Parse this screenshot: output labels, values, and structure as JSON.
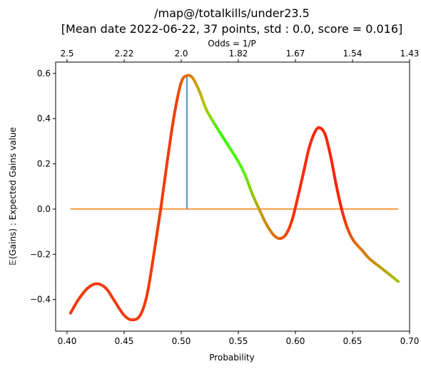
{
  "chart_data": {
    "type": "line",
    "title_line1": "/map@/totalkills/under23.5",
    "title_line2": "[Mean date 2022-06-22, 37 points, std : 0.0, score = 0.016]",
    "xlabel": "Probability",
    "ylabel": "𝔼(Gains) : Expected Gains value",
    "top_xlabel": "Odds  = 1/P",
    "xlim": [
      0.39,
      0.7
    ],
    "ylim": [
      -0.54,
      0.65
    ],
    "x_ticks": [
      0.4,
      0.45,
      0.5,
      0.55,
      0.6,
      0.65,
      0.7
    ],
    "x_tick_labels": [
      "0.40",
      "0.45",
      "0.50",
      "0.55",
      "0.60",
      "0.65",
      "0.70"
    ],
    "y_ticks": [
      -0.4,
      -0.2,
      0.0,
      0.2,
      0.4,
      0.6
    ],
    "y_tick_labels": [
      "−0.4",
      "−0.2",
      "0.0",
      "0.2",
      "0.4",
      "0.6"
    ],
    "top_ticks": [
      {
        "prob": 0.4,
        "label": "2.5"
      },
      {
        "prob": 0.45,
        "label": "2.22"
      },
      {
        "prob": 0.5,
        "label": "2.0"
      },
      {
        "prob": 0.55,
        "label": "1.82"
      },
      {
        "prob": 0.6,
        "label": "1.67"
      },
      {
        "prob": 0.65,
        "label": "1.54"
      },
      {
        "prob": 0.7,
        "label": "1.43"
      }
    ],
    "series": [
      {
        "points": [
          [
            0.403,
            -0.46
          ],
          [
            0.41,
            -0.4
          ],
          [
            0.418,
            -0.35
          ],
          [
            0.426,
            -0.33
          ],
          [
            0.434,
            -0.35
          ],
          [
            0.442,
            -0.41
          ],
          [
            0.45,
            -0.47
          ],
          [
            0.457,
            -0.49
          ],
          [
            0.464,
            -0.47
          ],
          [
            0.47,
            -0.38
          ],
          [
            0.476,
            -0.2
          ],
          [
            0.482,
            0.0
          ],
          [
            0.488,
            0.22
          ],
          [
            0.494,
            0.42
          ],
          [
            0.5,
            0.56
          ],
          [
            0.505,
            0.59
          ],
          [
            0.51,
            0.58
          ],
          [
            0.516,
            0.52
          ],
          [
            0.522,
            0.44
          ],
          [
            0.53,
            0.37
          ],
          [
            0.54,
            0.29
          ],
          [
            0.55,
            0.21
          ],
          [
            0.556,
            0.15
          ],
          [
            0.562,
            0.07
          ],
          [
            0.57,
            -0.02
          ],
          [
            0.576,
            -0.08
          ],
          [
            0.582,
            -0.12
          ],
          [
            0.587,
            -0.13
          ],
          [
            0.592,
            -0.11
          ],
          [
            0.597,
            -0.05
          ],
          [
            0.602,
            0.05
          ],
          [
            0.607,
            0.16
          ],
          [
            0.612,
            0.27
          ],
          [
            0.617,
            0.34
          ],
          [
            0.621,
            0.36
          ],
          [
            0.626,
            0.33
          ],
          [
            0.631,
            0.23
          ],
          [
            0.636,
            0.1
          ],
          [
            0.641,
            -0.01
          ],
          [
            0.646,
            -0.09
          ],
          [
            0.651,
            -0.14
          ],
          [
            0.658,
            -0.18
          ],
          [
            0.665,
            -0.22
          ],
          [
            0.675,
            -0.26
          ],
          [
            0.69,
            -0.32
          ]
        ],
        "gradient_colors": [
          {
            "x": 0.403,
            "color": "#f03a0c"
          },
          {
            "x": 0.495,
            "color": "#f33d0a"
          },
          {
            "x": 0.507,
            "color": "#e07a08"
          },
          {
            "x": 0.52,
            "color": "#b6c205"
          },
          {
            "x": 0.535,
            "color": "#35fb01"
          },
          {
            "x": 0.555,
            "color": "#58f202"
          },
          {
            "x": 0.568,
            "color": "#c0a306"
          },
          {
            "x": 0.585,
            "color": "#e8600a"
          },
          {
            "x": 0.6,
            "color": "#ff2a0a"
          },
          {
            "x": 0.64,
            "color": "#ff2208"
          },
          {
            "x": 0.652,
            "color": "#e06808"
          },
          {
            "x": 0.69,
            "color": "#a6c203"
          }
        ]
      }
    ],
    "hline": {
      "y": 0.0,
      "x_start": 0.403,
      "x_end": 0.69,
      "color": "#ff7f0e"
    },
    "vline": {
      "x": 0.505,
      "y_start": 0.0,
      "y_end": 0.59,
      "color": "#1f77b4"
    }
  }
}
